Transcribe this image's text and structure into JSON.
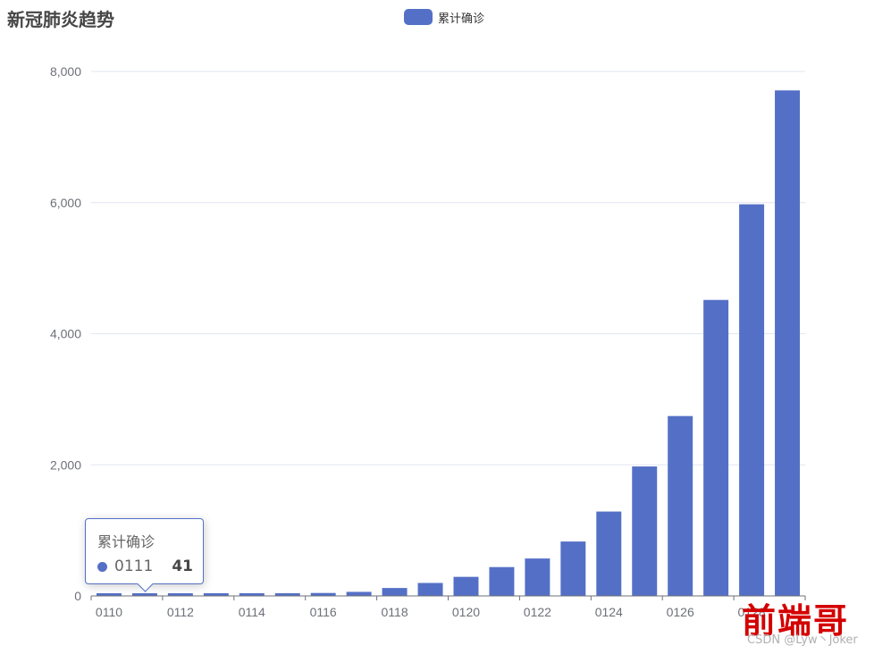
{
  "chart_data": {
    "type": "bar",
    "title": "新冠肺炎趋势",
    "legend": {
      "placement": "top-center",
      "entries": [
        "累计确诊"
      ]
    },
    "categories": [
      "0110",
      "0111",
      "0112",
      "0113",
      "0114",
      "0115",
      "0116",
      "0117",
      "0118",
      "0119",
      "0120",
      "0121",
      "0122",
      "0123",
      "0124",
      "0125",
      "0126",
      "0127",
      "0128",
      "0129"
    ],
    "series": [
      {
        "name": "累计确诊",
        "values": [
          41,
          41,
          41,
          41,
          41,
          41,
          45,
          62,
          121,
          198,
          291,
          440,
          571,
          830,
          1287,
          1975,
          2744,
          4515,
          5974,
          7711
        ]
      }
    ],
    "ylim": [
      0,
      8000
    ],
    "yticks": [
      0,
      2000,
      4000,
      6000,
      8000
    ],
    "ytick_labels": [
      "0",
      "2,000",
      "4,000",
      "6,000",
      "8,000"
    ],
    "xtick_labels": [
      "0110",
      "0112",
      "0114",
      "0116",
      "0118",
      "0120",
      "0122",
      "0124",
      "0126",
      "0128"
    ],
    "grid": "horizontal",
    "bar_color": "#5470c6"
  },
  "tooltip": {
    "title": "累计确诊",
    "category": "0111",
    "value": "41"
  },
  "watermark": {
    "logo": "前端哥",
    "text": "CSDN @Lyw丶Joker"
  }
}
